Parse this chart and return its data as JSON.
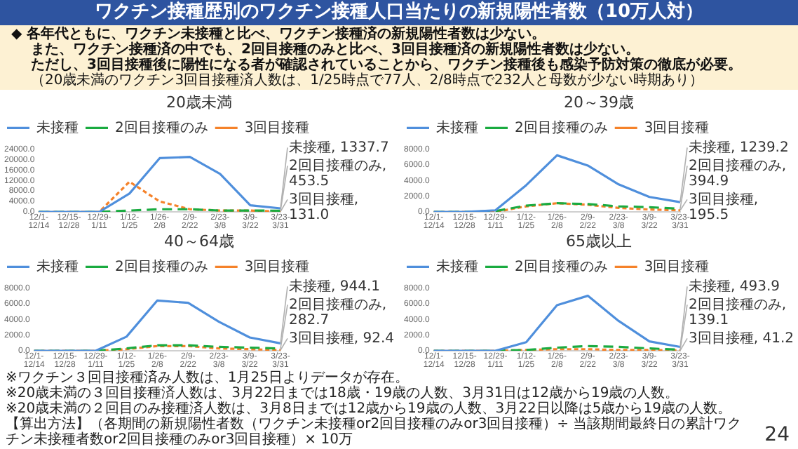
{
  "chart_data": [
    {
      "type": "other",
      "title": "ワクチン接種歴別のワクチン接種人口当たりの新規陽性者数（10万人対）",
      "annotations": [
        "◆ 各年代ともに、ワクチン未接種と比べ、ワクチン接種済の新規陽性者数は少ない。",
        "また、ワクチン接種済の中でも、2回目接種のみと比べ、3回目接種済の新規陽性者数は少ない。",
        "ただし、3回目接種後に陽性になる者が確認されていることから、ワクチン接種後も感染予防対策の徹底が必要。",
        "（20歳未満のワクチン3回目接種済人数は、1/25時点で77人、2/8時点で232人と母数が少ない時期あり）"
      ]
    },
    {
      "type": "line",
      "title": "20歳未満",
      "categories": [
        "12/1-12/14",
        "12/15-12/28",
        "12/29-1/11",
        "1/12-1/25",
        "1/26-2/8",
        "2/9-2/22",
        "2/23-3/8",
        "3/9-3/22",
        "3/23-3/31"
      ],
      "ylim": [
        0,
        24000
      ],
      "yticks": [
        {
          "value": 0,
          "label": "0.0"
        },
        {
          "value": 4000,
          "label": "4000.0"
        },
        {
          "value": 8000,
          "label": "8000.0"
        },
        {
          "value": 12000,
          "label": "12000.0"
        },
        {
          "value": 16000,
          "label": "16000.0"
        },
        {
          "value": 20000,
          "label": "20000.0"
        },
        {
          "value": 24000,
          "label": "24000.0"
        }
      ],
      "legend": "top left",
      "marker": "none",
      "series": [
        {
          "name": "未接種",
          "color": "#4f8fdc",
          "line_style": "solid",
          "values": [
            0,
            0,
            0,
            7000,
            20500,
            21000,
            14500,
            2500,
            1337.7
          ]
        },
        {
          "name": "2回目接種のみ",
          "color": "#1aab40",
          "line_style": "dashed",
          "values": [
            0,
            0,
            0,
            500,
            1000,
            1000,
            500,
            500,
            453.5
          ]
        },
        {
          "name": "3回目接種",
          "color": "#f5822a",
          "line_style": "dotted",
          "values": [
            0,
            0,
            0,
            11500,
            4000,
            1000,
            500,
            500,
            131.0
          ]
        }
      ],
      "annotations": [
        {
          "text": "未接種, 1337.7",
          "x": "3/23-3/31",
          "y": 1337.7
        },
        {
          "text": "2回目接種のみ, 453.5",
          "x": "3/23-3/31",
          "y": 453.5
        },
        {
          "text": "3回目接種, 131.0",
          "x": "3/23-3/31",
          "y": 131.0
        }
      ]
    },
    {
      "type": "line",
      "title": "20～39歳",
      "categories": [
        "12/1-12/14",
        "12/15-12/28",
        "12/29-1/11",
        "1/12-1/25",
        "1/26-2/8",
        "2/9-2/22",
        "2/23-3/8",
        "3/9-3/22",
        "3/23-3/31"
      ],
      "ylim": [
        0,
        8000
      ],
      "yticks": [
        {
          "value": 0,
          "label": "0.0"
        },
        {
          "value": 2000,
          "label": "2000.0"
        },
        {
          "value": 4000,
          "label": "4000.0"
        },
        {
          "value": 6000,
          "label": "6000.0"
        },
        {
          "value": 8000,
          "label": "8000.0"
        }
      ],
      "legend": "top left",
      "marker": "none",
      "series": [
        {
          "name": "未接種",
          "color": "#4f8fdc",
          "line_style": "solid",
          "values": [
            0,
            0,
            200,
            3400,
            7200,
            5900,
            3500,
            1900,
            1239.2
          ]
        },
        {
          "name": "2回目接種のみ",
          "color": "#1aab40",
          "line_style": "dashed",
          "values": [
            0,
            0,
            100,
            800,
            1100,
            1000,
            700,
            600,
            394.9
          ]
        },
        {
          "name": "3回目接種",
          "color": "#f5822a",
          "line_style": "dotted",
          "values": [
            0,
            0,
            0,
            700,
            1100,
            900,
            500,
            300,
            195.5
          ]
        }
      ],
      "annotations": [
        {
          "text": "未接種, 1239.2",
          "x": "3/23-3/31",
          "y": 1239.2
        },
        {
          "text": "2回目接種のみ, 394.9",
          "x": "3/23-3/31",
          "y": 394.9
        },
        {
          "text": "3回目接種, 195.5",
          "x": "3/23-3/31",
          "y": 195.5
        }
      ]
    },
    {
      "type": "line",
      "title": "40～64歳",
      "categories": [
        "12/1-12/14",
        "12/15-12/28",
        "12/29-1/11",
        "1/12-1/25",
        "1/26-2/8",
        "2/9-2/22",
        "2/23-3/8",
        "3/9-3/22",
        "3/23-3/31"
      ],
      "ylim": [
        0,
        8000
      ],
      "yticks": [
        {
          "value": 0,
          "label": "0.0"
        },
        {
          "value": 2000,
          "label": "2000.0"
        },
        {
          "value": 4000,
          "label": "4000.0"
        },
        {
          "value": 6000,
          "label": "6000.0"
        },
        {
          "value": 8000,
          "label": "8000.0"
        }
      ],
      "legend": "top left",
      "marker": "none",
      "series": [
        {
          "name": "未接種",
          "color": "#4f8fdc",
          "line_style": "solid",
          "values": [
            0,
            0,
            0,
            1800,
            6400,
            6100,
            3700,
            1700,
            944.1
          ]
        },
        {
          "name": "2回目接種のみ",
          "color": "#1aab40",
          "line_style": "dashed",
          "values": [
            0,
            0,
            0,
            300,
            700,
            700,
            500,
            400,
            282.7
          ]
        },
        {
          "name": "3回目接種",
          "color": "#f5822a",
          "line_style": "dotted",
          "values": [
            0,
            0,
            0,
            200,
            600,
            600,
            300,
            200,
            92.4
          ]
        }
      ],
      "annotations": [
        {
          "text": "未接種, 944.1",
          "x": "3/23-3/31",
          "y": 944.1
        },
        {
          "text": "2回目接種のみ, 282.7",
          "x": "3/23-3/31",
          "y": 282.7
        },
        {
          "text": "3回目接種, 92.4",
          "x": "3/23-3/31",
          "y": 92.4
        }
      ]
    },
    {
      "type": "line",
      "title": "65歳以上",
      "categories": [
        "12/1-12/14",
        "12/15-12/28",
        "12/29-1/11",
        "1/12-1/25",
        "1/26-2/8",
        "2/9-2/22",
        "2/23-3/8",
        "3/9-3/22",
        "3/23-3/31"
      ],
      "ylim": [
        0,
        8000
      ],
      "yticks": [
        {
          "value": 0,
          "label": "0.0"
        },
        {
          "value": 2000,
          "label": "2000.0"
        },
        {
          "value": 4000,
          "label": "4000.0"
        },
        {
          "value": 6000,
          "label": "6000.0"
        },
        {
          "value": 8000,
          "label": "8000.0"
        }
      ],
      "legend": "top left",
      "marker": "none",
      "series": [
        {
          "name": "未接種",
          "color": "#4f8fdc",
          "line_style": "solid",
          "values": [
            0,
            0,
            0,
            1100,
            5800,
            7000,
            3800,
            1200,
            493.9
          ]
        },
        {
          "name": "2回目接種のみ",
          "color": "#1aab40",
          "line_style": "dashed",
          "values": [
            0,
            0,
            0,
            100,
            400,
            600,
            500,
            300,
            139.1
          ]
        },
        {
          "name": "3回目接種",
          "color": "#f5822a",
          "line_style": "dotted",
          "values": [
            0,
            0,
            0,
            100,
            200,
            200,
            100,
            100,
            41.2
          ]
        }
      ],
      "annotations": [
        {
          "text": "未接種, 493.9",
          "x": "3/23-3/31",
          "y": 493.9
        },
        {
          "text": "2回目接種のみ, 139.1",
          "x": "3/23-3/31",
          "y": 139.1
        },
        {
          "text": "3回目接種, 41.2",
          "x": "3/23-3/31",
          "y": 41.2
        }
      ]
    },
    {
      "type": "other",
      "annotations": [
        "※ワクチン３回目接種済み人数は、1月25日よりデータが存在。",
        "※20歳未満の３回目接種済人数は、3月22日までは18歳・19歳の人数、3月31日は12歳から19歳の人数。",
        "※20歳未満の２回目のみ接種済人数は、3月8日までは12歳から19歳の人数、3月22日以降は5歳から19歳の人数。",
        "【算出方法】（各期間の新規陽性者数（ワクチン未接種or2回目接種のみor3回目接種）÷ 当該期間最終日の累計ワクチン未接種者数or2回目接種のみor3回目接種）× 10万",
        "24"
      ]
    }
  ]
}
